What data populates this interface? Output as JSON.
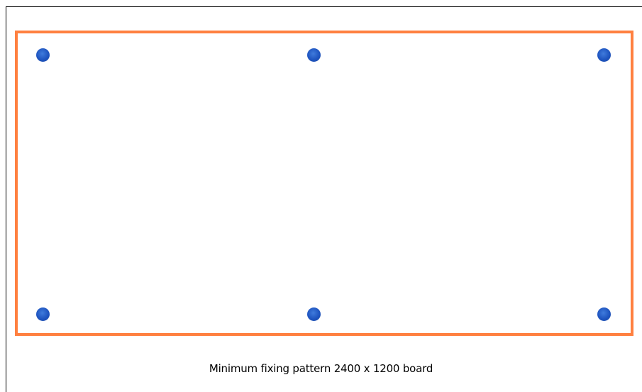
{
  "diagram": {
    "caption": "Minimum fixing pattern 2400 x 1200 board",
    "board_border_color": "#ff8040",
    "fixing_color": "#1f55c0",
    "fixings": [
      {
        "name": "fixing-top-left"
      },
      {
        "name": "fixing-top-middle"
      },
      {
        "name": "fixing-top-right"
      },
      {
        "name": "fixing-bottom-left"
      },
      {
        "name": "fixing-bottom-middle"
      },
      {
        "name": "fixing-bottom-right"
      }
    ]
  }
}
